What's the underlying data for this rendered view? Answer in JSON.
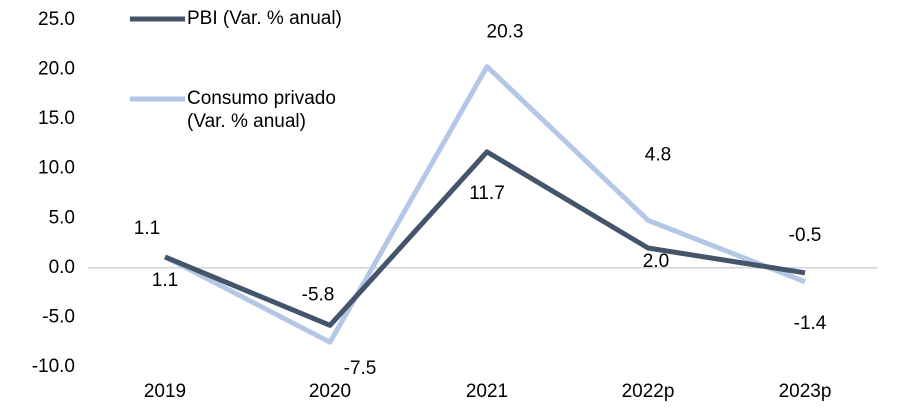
{
  "chart_data": {
    "type": "line",
    "categories": [
      "2019",
      "2020",
      "2021",
      "2022p",
      "2023p"
    ],
    "series": [
      {
        "name": "PBI (Var. % anual)",
        "color": "#44546a",
        "values": [
          1.1,
          -5.8,
          11.7,
          2.0,
          -0.5
        ],
        "value_labels": [
          "1.1",
          "-5.8",
          "11.7",
          "2.0",
          "-0.5"
        ]
      },
      {
        "name": "Consumo privado (Var. % anual)",
        "color": "#b4c7e7",
        "values": [
          1.1,
          -7.5,
          20.3,
          4.8,
          -1.4
        ],
        "value_labels": [
          "1.1",
          "-7.5",
          "20.3",
          "4.8",
          "-1.4"
        ]
      }
    ],
    "ylim": [
      -10,
      25
    ],
    "yticks": [
      {
        "value": -10,
        "label": "-10.0"
      },
      {
        "value": -5,
        "label": "-5.0"
      },
      {
        "value": 0,
        "label": "0.0"
      },
      {
        "value": 5,
        "label": "5.0"
      },
      {
        "value": 10,
        "label": "10.0"
      },
      {
        "value": 15,
        "label": "15.0"
      },
      {
        "value": 20,
        "label": "20.0"
      },
      {
        "value": 25,
        "label": "25.0"
      }
    ],
    "grid": false,
    "legend": "top-left"
  }
}
